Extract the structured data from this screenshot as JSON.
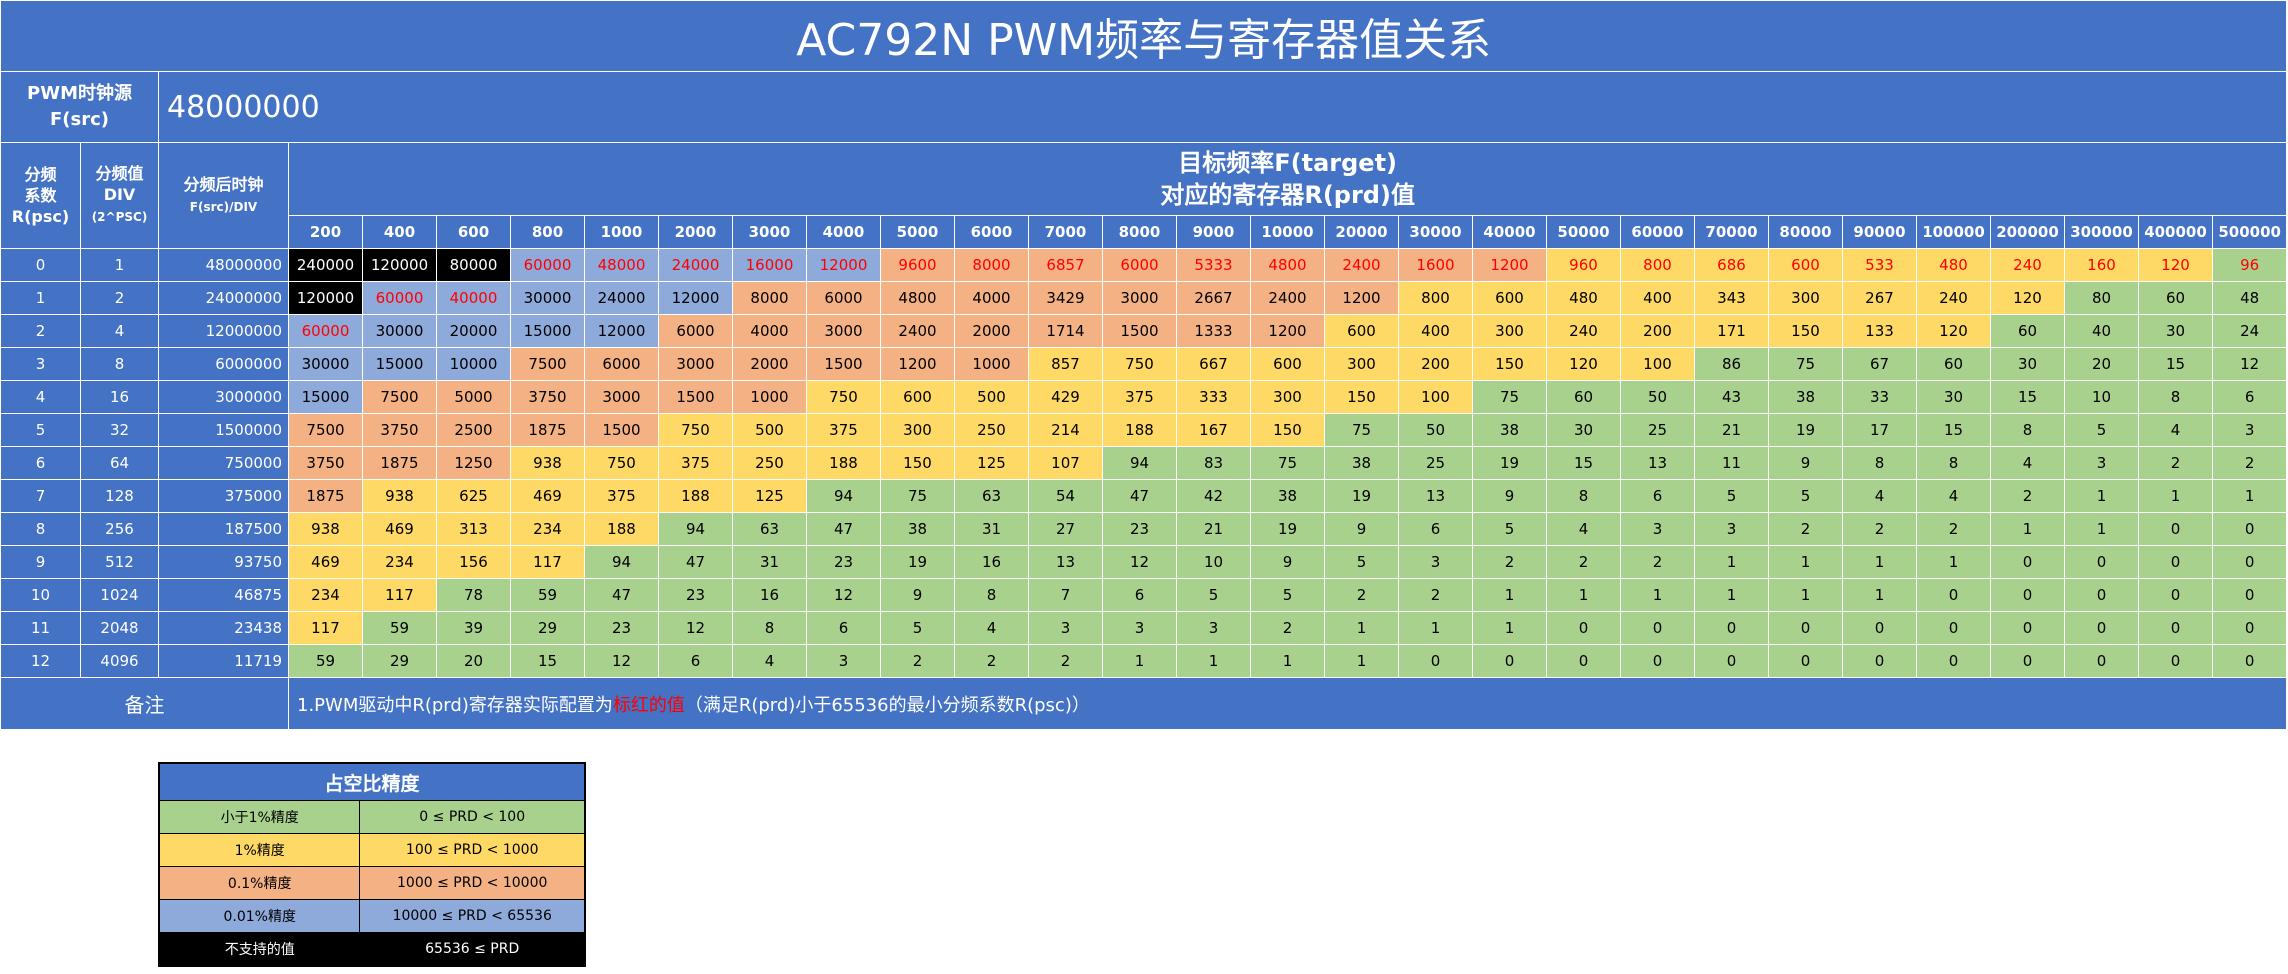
{
  "title": "AC792N PWM频率与寄存器值关系",
  "clock_source": {
    "label_line1": "PWM时钟源",
    "label_line2": "F(src)",
    "value": "48000000"
  },
  "headers": {
    "psc_line1": "分频",
    "psc_line2": "系数",
    "psc_line3": "R(psc)",
    "div_line1": "分频值",
    "div_line2": "DIV",
    "div_line3": "(2^PSC)",
    "clk_line1": "分频后时钟",
    "clk_line2": "F(src)/DIV",
    "target_line1": "目标频率F(target)",
    "target_line2": "对应的寄存器R(prd)值"
  },
  "frequencies": [
    "200",
    "400",
    "600",
    "800",
    "1000",
    "2000",
    "3000",
    "4000",
    "5000",
    "6000",
    "7000",
    "8000",
    "9000",
    "10000",
    "20000",
    "30000",
    "40000",
    "50000",
    "60000",
    "70000",
    "80000",
    "90000",
    "100000",
    "200000",
    "300000",
    "400000",
    "500000"
  ],
  "rows": [
    {
      "psc": "0",
      "div": "1",
      "clk": "48000000",
      "values": [
        "240000",
        "120000",
        "80000",
        "60000",
        "48000",
        "24000",
        "16000",
        "12000",
        "9600",
        "8000",
        "6857",
        "6000",
        "5333",
        "4800",
        "2400",
        "1600",
        "1200",
        "960",
        "800",
        "686",
        "600",
        "533",
        "480",
        "240",
        "160",
        "120",
        "96"
      ]
    },
    {
      "psc": "1",
      "div": "2",
      "clk": "24000000",
      "values": [
        "120000",
        "60000",
        "40000",
        "30000",
        "24000",
        "12000",
        "8000",
        "6000",
        "4800",
        "4000",
        "3429",
        "3000",
        "2667",
        "2400",
        "1200",
        "800",
        "600",
        "480",
        "400",
        "343",
        "300",
        "267",
        "240",
        "120",
        "80",
        "60",
        "48"
      ]
    },
    {
      "psc": "2",
      "div": "4",
      "clk": "12000000",
      "values": [
        "60000",
        "30000",
        "20000",
        "15000",
        "12000",
        "6000",
        "4000",
        "3000",
        "2400",
        "2000",
        "1714",
        "1500",
        "1333",
        "1200",
        "600",
        "400",
        "300",
        "240",
        "200",
        "171",
        "150",
        "133",
        "120",
        "60",
        "40",
        "30",
        "24"
      ]
    },
    {
      "psc": "3",
      "div": "8",
      "clk": "6000000",
      "values": [
        "30000",
        "15000",
        "10000",
        "7500",
        "6000",
        "3000",
        "2000",
        "1500",
        "1200",
        "1000",
        "857",
        "750",
        "667",
        "600",
        "300",
        "200",
        "150",
        "120",
        "100",
        "86",
        "75",
        "67",
        "60",
        "30",
        "20",
        "15",
        "12"
      ]
    },
    {
      "psc": "4",
      "div": "16",
      "clk": "3000000",
      "values": [
        "15000",
        "7500",
        "5000",
        "3750",
        "3000",
        "1500",
        "1000",
        "750",
        "600",
        "500",
        "429",
        "375",
        "333",
        "300",
        "150",
        "100",
        "75",
        "60",
        "50",
        "43",
        "38",
        "33",
        "30",
        "15",
        "10",
        "8",
        "6"
      ]
    },
    {
      "psc": "5",
      "div": "32",
      "clk": "1500000",
      "values": [
        "7500",
        "3750",
        "2500",
        "1875",
        "1500",
        "750",
        "500",
        "375",
        "300",
        "250",
        "214",
        "188",
        "167",
        "150",
        "75",
        "50",
        "38",
        "30",
        "25",
        "21",
        "19",
        "17",
        "15",
        "8",
        "5",
        "4",
        "3"
      ]
    },
    {
      "psc": "6",
      "div": "64",
      "clk": "750000",
      "values": [
        "3750",
        "1875",
        "1250",
        "938",
        "750",
        "375",
        "250",
        "188",
        "150",
        "125",
        "107",
        "94",
        "83",
        "75",
        "38",
        "25",
        "19",
        "15",
        "13",
        "11",
        "9",
        "8",
        "8",
        "4",
        "3",
        "2",
        "2"
      ]
    },
    {
      "psc": "7",
      "div": "128",
      "clk": "375000",
      "values": [
        "1875",
        "938",
        "625",
        "469",
        "375",
        "188",
        "125",
        "94",
        "75",
        "63",
        "54",
        "47",
        "42",
        "38",
        "19",
        "13",
        "9",
        "8",
        "6",
        "5",
        "5",
        "4",
        "4",
        "2",
        "1",
        "1",
        "1"
      ]
    },
    {
      "psc": "8",
      "div": "256",
      "clk": "187500",
      "values": [
        "938",
        "469",
        "313",
        "234",
        "188",
        "94",
        "63",
        "47",
        "38",
        "31",
        "27",
        "23",
        "21",
        "19",
        "9",
        "6",
        "5",
        "4",
        "3",
        "3",
        "2",
        "2",
        "2",
        "1",
        "1",
        "0",
        "0"
      ]
    },
    {
      "psc": "9",
      "div": "512",
      "clk": "93750",
      "values": [
        "469",
        "234",
        "156",
        "117",
        "94",
        "47",
        "31",
        "23",
        "19",
        "16",
        "13",
        "12",
        "10",
        "9",
        "5",
        "3",
        "2",
        "2",
        "2",
        "1",
        "1",
        "1",
        "1",
        "0",
        "0",
        "0",
        "0"
      ]
    },
    {
      "psc": "10",
      "div": "1024",
      "clk": "46875",
      "values": [
        "234",
        "117",
        "78",
        "59",
        "47",
        "23",
        "16",
        "12",
        "9",
        "8",
        "7",
        "6",
        "5",
        "5",
        "2",
        "2",
        "1",
        "1",
        "1",
        "1",
        "1",
        "1",
        "0",
        "0",
        "0",
        "0",
        "0"
      ]
    },
    {
      "psc": "11",
      "div": "2048",
      "clk": "23438",
      "values": [
        "117",
        "59",
        "39",
        "29",
        "23",
        "12",
        "8",
        "6",
        "5",
        "4",
        "3",
        "3",
        "3",
        "2",
        "1",
        "1",
        "1",
        "0",
        "0",
        "0",
        "0",
        "0",
        "0",
        "0",
        "0",
        "0",
        "0"
      ]
    },
    {
      "psc": "12",
      "div": "4096",
      "clk": "11719",
      "values": [
        "59",
        "29",
        "20",
        "15",
        "12",
        "6",
        "4",
        "3",
        "2",
        "2",
        "2",
        "1",
        "1",
        "1",
        "1",
        "0",
        "0",
        "0",
        "0",
        "0",
        "0",
        "0",
        "0",
        "0",
        "0",
        "0",
        "0"
      ]
    }
  ],
  "highlight_red": [
    [
      0,
      3
    ],
    [
      0,
      4
    ],
    [
      0,
      5
    ],
    [
      0,
      6
    ],
    [
      0,
      7
    ],
    [
      0,
      8
    ],
    [
      0,
      9
    ],
    [
      0,
      10
    ],
    [
      0,
      11
    ],
    [
      0,
      12
    ],
    [
      0,
      13
    ],
    [
      0,
      14
    ],
    [
      0,
      15
    ],
    [
      0,
      16
    ],
    [
      0,
      17
    ],
    [
      0,
      18
    ],
    [
      0,
      19
    ],
    [
      0,
      20
    ],
    [
      0,
      21
    ],
    [
      0,
      22
    ],
    [
      0,
      23
    ],
    [
      0,
      24
    ],
    [
      0,
      25
    ],
    [
      0,
      26
    ],
    [
      1,
      1
    ],
    [
      1,
      2
    ],
    [
      2,
      0
    ]
  ],
  "note": {
    "label": "备注",
    "prefix": "1.PWM驱动中R(prd)寄存器实际配置为",
    "highlight": "标红的值",
    "suffix": "（满足R(prd)小于65536的最小分频系数R(psc)）"
  },
  "legend": {
    "title": "占空比精度",
    "items": [
      {
        "label": "小于1%精度",
        "range": "0 ≤ PRD < 100",
        "color": "#a9d18e",
        "text_color": "#000000"
      },
      {
        "label": "1%精度",
        "range": "100 ≤ PRD < 1000",
        "color": "#ffd966",
        "text_color": "#000000"
      },
      {
        "label": "0.1%精度",
        "range": "1000 ≤ PRD < 10000",
        "color": "#f4b183",
        "text_color": "#000000"
      },
      {
        "label": "0.01%精度",
        "range": "10000 ≤ PRD < 65536",
        "color": "#8eaadb",
        "text_color": "#000000"
      },
      {
        "label": "不支持的值",
        "range": "65536 ≤ PRD",
        "color": "#000000",
        "text_color": "#ffffff"
      }
    ]
  }
}
